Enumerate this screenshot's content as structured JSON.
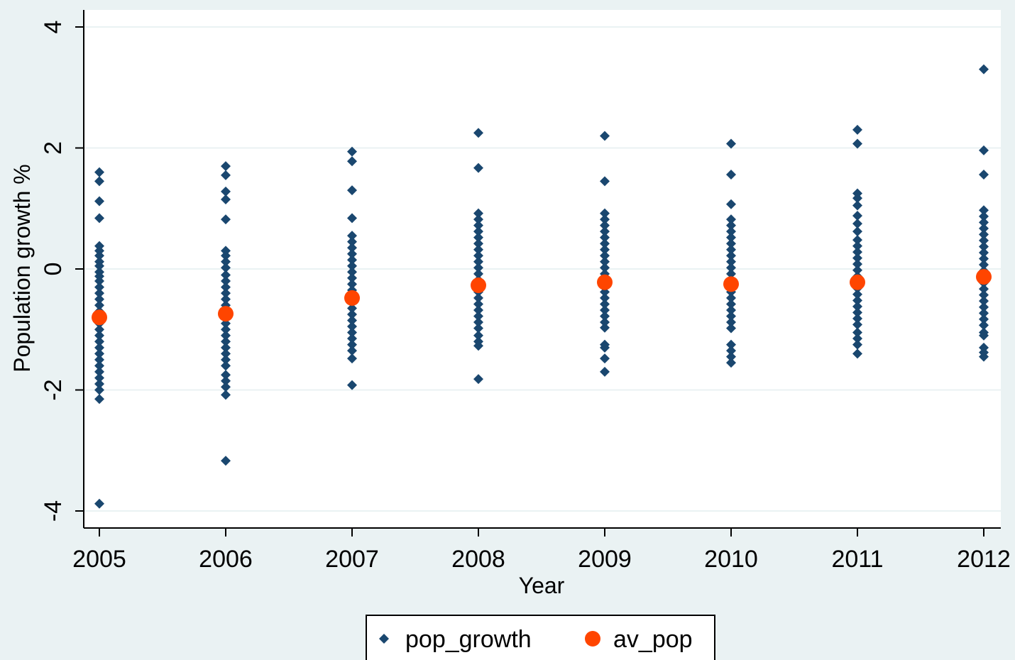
{
  "chart_data": {
    "type": "scatter",
    "title": "",
    "xlabel": "Year",
    "ylabel": "Population growth %",
    "xlim": [
      2005,
      2012
    ],
    "ylim": [
      -4,
      4
    ],
    "x_ticks": [
      "2005",
      "2006",
      "2007",
      "2008",
      "2009",
      "2010",
      "2011",
      "2012"
    ],
    "y_ticks": [
      {
        "value": 4,
        "label": "4"
      },
      {
        "value": 2,
        "label": "2"
      },
      {
        "value": 0,
        "label": "0"
      },
      {
        "value": -2,
        "label": "-2"
      },
      {
        "value": -4,
        "label": "-4"
      }
    ],
    "grid": true,
    "legend_position": "bottom",
    "series": [
      {
        "name": "pop_growth",
        "color": "#1a476f",
        "marker": "diamond",
        "points": [
          {
            "x": 2005,
            "y": [
              1.6,
              1.45,
              1.12,
              0.84,
              0.38,
              0.3,
              0.22,
              0.12,
              0.05,
              -0.05,
              -0.12,
              -0.2,
              -0.3,
              -0.4,
              -0.5,
              -0.6,
              -0.7,
              -0.8,
              -0.9,
              -1.0,
              -1.1,
              -1.2,
              -1.3,
              -1.4,
              -1.5,
              -1.6,
              -1.7,
              -1.8,
              -1.9,
              -2.0,
              -2.15,
              -3.88
            ]
          },
          {
            "x": 2006,
            "y": [
              1.7,
              1.55,
              1.28,
              1.15,
              0.82,
              0.3,
              0.22,
              0.12,
              0.02,
              -0.1,
              -0.2,
              -0.3,
              -0.4,
              -0.5,
              -0.6,
              -0.7,
              -0.8,
              -0.9,
              -1.0,
              -1.1,
              -1.2,
              -1.3,
              -1.4,
              -1.5,
              -1.6,
              -1.75,
              -1.85,
              -1.95,
              -2.08,
              -3.17
            ]
          },
          {
            "x": 2007,
            "y": [
              1.94,
              1.78,
              1.3,
              0.84,
              0.55,
              0.45,
              0.35,
              0.25,
              0.15,
              0.05,
              -0.05,
              -0.15,
              -0.25,
              -0.35,
              -0.45,
              -0.55,
              -0.65,
              -0.75,
              -0.85,
              -0.95,
              -1.05,
              -1.15,
              -1.25,
              -1.35,
              -1.48,
              -1.92
            ]
          },
          {
            "x": 2008,
            "y": [
              2.25,
              1.67,
              0.92,
              0.82,
              0.72,
              0.62,
              0.52,
              0.42,
              0.32,
              0.22,
              0.12,
              0.02,
              -0.08,
              -0.18,
              -0.28,
              -0.38,
              -0.48,
              -0.58,
              -0.68,
              -0.78,
              -0.88,
              -0.98,
              -1.1,
              -1.2,
              -1.27,
              -1.82
            ]
          },
          {
            "x": 2009,
            "y": [
              2.2,
              1.45,
              0.92,
              0.82,
              0.72,
              0.62,
              0.52,
              0.42,
              0.32,
              0.22,
              0.12,
              0.02,
              -0.08,
              -0.18,
              -0.28,
              -0.38,
              -0.48,
              -0.58,
              -0.68,
              -0.78,
              -0.88,
              -0.97,
              -1.25,
              -1.3,
              -1.48,
              -1.7
            ]
          },
          {
            "x": 2010,
            "y": [
              2.07,
              1.56,
              1.07,
              0.82,
              0.72,
              0.62,
              0.52,
              0.42,
              0.32,
              0.22,
              0.12,
              0.02,
              -0.08,
              -0.18,
              -0.28,
              -0.38,
              -0.48,
              -0.58,
              -0.68,
              -0.78,
              -0.88,
              -0.98,
              -1.25,
              -1.35,
              -1.45,
              -1.55
            ]
          },
          {
            "x": 2011,
            "y": [
              2.3,
              2.07,
              1.25,
              1.17,
              1.05,
              0.88,
              0.75,
              0.62,
              0.48,
              0.38,
              0.28,
              0.18,
              0.08,
              -0.02,
              -0.12,
              -0.22,
              -0.32,
              -0.42,
              -0.52,
              -0.62,
              -0.72,
              -0.82,
              -0.92,
              -1.05,
              -1.15,
              -1.25,
              -1.4
            ]
          },
          {
            "x": 2012,
            "y": [
              3.3,
              1.96,
              1.56,
              0.97,
              0.87,
              0.77,
              0.67,
              0.57,
              0.47,
              0.37,
              0.27,
              0.17,
              0.07,
              -0.03,
              -0.13,
              -0.23,
              -0.33,
              -0.43,
              -0.53,
              -0.63,
              -0.73,
              -0.83,
              -0.93,
              -1.05,
              -1.1,
              -1.3,
              -1.38,
              -1.45
            ]
          }
        ]
      },
      {
        "name": "av_pop",
        "color": "#ff4500",
        "marker": "circle",
        "points": [
          {
            "x": 2005,
            "y": -0.8
          },
          {
            "x": 2006,
            "y": -0.74
          },
          {
            "x": 2007,
            "y": -0.48
          },
          {
            "x": 2008,
            "y": -0.27
          },
          {
            "x": 2009,
            "y": -0.22
          },
          {
            "x": 2010,
            "y": -0.25
          },
          {
            "x": 2011,
            "y": -0.22
          },
          {
            "x": 2012,
            "y": -0.13
          }
        ]
      }
    ]
  }
}
